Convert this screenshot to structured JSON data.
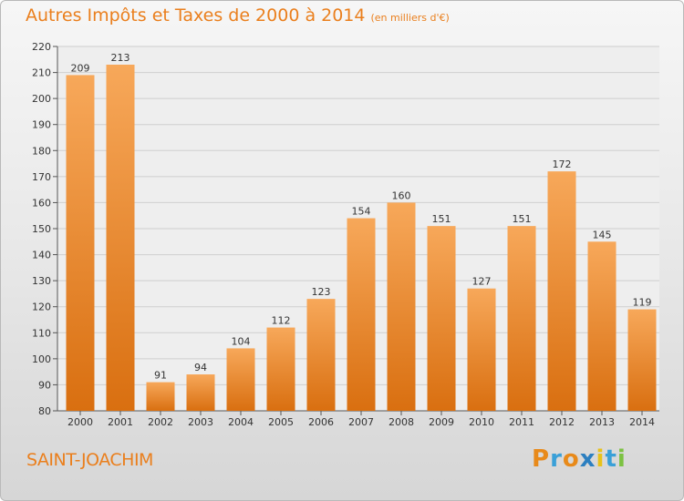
{
  "title": "Autres Impôts et Taxes de 2000 à 2014",
  "subtitle": "(en milliers d'€)",
  "location": "SAINT-JOACHIM",
  "logo": {
    "text": "Proxiti",
    "letter_colors": [
      "#e88a1a",
      "#3aa0d8",
      "#e88a1a",
      "#2c7fc0",
      "#e8c21a",
      "#3aa0d8",
      "#7cc242"
    ]
  },
  "colors": {
    "bar_top": "#f7a85a",
    "bar_bottom": "#d96f10",
    "accent": "#ea7f1d"
  },
  "chart_data": {
    "type": "bar",
    "title": "Autres Impôts et Taxes de 2000 à 2014",
    "subtitle": "(en milliers d'€)",
    "categories": [
      "2000",
      "2001",
      "2002",
      "2003",
      "2004",
      "2005",
      "2006",
      "2007",
      "2008",
      "2009",
      "2010",
      "2011",
      "2012",
      "2013",
      "2014"
    ],
    "values": [
      209,
      213,
      91,
      94,
      104,
      112,
      123,
      154,
      160,
      151,
      127,
      151,
      172,
      145,
      119
    ],
    "ylim": [
      80,
      220
    ],
    "yticks": [
      80,
      90,
      100,
      110,
      120,
      130,
      140,
      150,
      160,
      170,
      180,
      190,
      200,
      210,
      220
    ],
    "grid": true,
    "xlabel": "",
    "ylabel": ""
  }
}
